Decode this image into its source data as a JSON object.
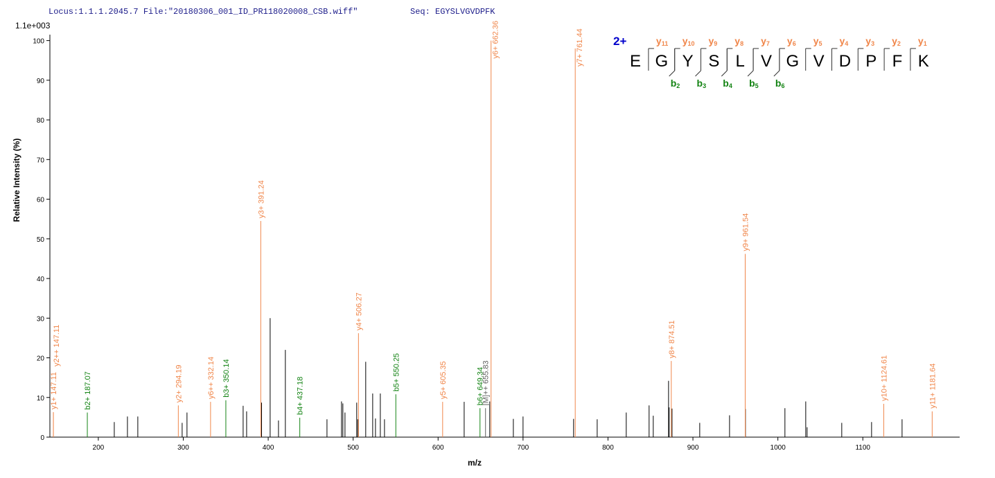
{
  "header": {
    "locus_file": "Locus:1.1.1.2045.7 File:\"20180306_001_ID_PR118020008_CSB.wiff\"",
    "seq": "Seq: EGYSLVGVDPFK"
  },
  "chart_data": {
    "type": "spectrum",
    "scale_label": "1.1e+003",
    "y_label": "Relative   Intensity (%)",
    "x_label": "m/z",
    "xlim": [
      143,
      1214
    ],
    "ylim": [
      0,
      101.5
    ],
    "xticks": [
      200,
      300,
      400,
      500,
      600,
      700,
      800,
      900,
      1000,
      1100
    ],
    "yticks": [
      0,
      10,
      20,
      30,
      40,
      50,
      60,
      70,
      80,
      90,
      100
    ],
    "peak_color": "#000000",
    "ion_colors": {
      "y": "#f0864a",
      "b": "#138313",
      "M": "#606060"
    },
    "peaks": {
      "x": [
        218.8,
        234.3,
        246.5,
        298.7,
        304.4,
        370.5,
        374.6,
        392.2,
        402.3,
        412.1,
        420.2,
        469.2,
        486.3,
        487.9,
        490.4,
        504.2,
        505.4,
        514.8,
        523.0,
        526.3,
        532.0,
        536.9,
        630.7,
        660.8,
        688.6,
        700,
        759.5,
        787.3,
        821.5,
        848.4,
        853.3,
        871.3,
        872,
        875.4,
        908,
        943.1,
        961.8,
        1008.3,
        1032.8,
        1034.4,
        1075.2,
        1110.3,
        1146.2
      ],
      "values": [
        3.8,
        5.2,
        5.2,
        3.6,
        6.2,
        7.9,
        6.5,
        8.7,
        30,
        4.2,
        22,
        4.5,
        9,
        8.5,
        6.2,
        8.7,
        4.5,
        19,
        11,
        4.7,
        11,
        4.5,
        8.9,
        9,
        4.6,
        5.2,
        4.6,
        4.5,
        6.2,
        8,
        5.4,
        14.2,
        7.5,
        7.2,
        3.6,
        5.5,
        7.1,
        7.3,
        9,
        2.5,
        3.6,
        3.8,
        4.5
      ]
    },
    "annotated": {
      "x": [
        147.11,
        147.11,
        187.07,
        294.19,
        332.14,
        350.14,
        391.24,
        437.18,
        506.27,
        550.25,
        605.35,
        649.34,
        655.83,
        662.36,
        761.44,
        874.51,
        961.54,
        1124.61,
        1181.64
      ],
      "values": [
        6.3,
        6.3,
        6.2,
        8,
        8.9,
        9.3,
        54.5,
        4.9,
        26.2,
        10.8,
        8.9,
        7.3,
        7.3,
        100,
        98,
        19.2,
        46.2,
        8.4,
        6.5
      ],
      "labels": [
        "y1+ 147.11",
        "y2++ 147.11",
        "b2+ 187.07",
        "y2+ 294.19",
        "y6++ 332.14",
        "b3+ 350.14",
        "y3+ 391.24",
        "b4+ 437.18",
        "y4+ 506.27",
        "b5+ 550.25",
        "y5+ 605.35",
        "b6+ 649.34",
        "[M]++ 655.83",
        "y6+ 662.36",
        "y7+ 761.44",
        "y8+ 874.51",
        "y9+ 961.54",
        "y10+ 1124.61",
        "y11+ 1181.64"
      ],
      "ions": [
        "y",
        "y",
        "b",
        "y",
        "y",
        "b",
        "y",
        "b",
        "y",
        "b",
        "y",
        "b",
        "M",
        "y",
        "y",
        "y",
        "y",
        "y",
        "y"
      ]
    }
  },
  "sequence": {
    "charge": "2+",
    "residues": [
      "E",
      "G",
      "Y",
      "S",
      "L",
      "V",
      "G",
      "V",
      "D",
      "P",
      "F",
      "K"
    ],
    "y_ions": [
      {
        "letter": "y",
        "sub": "11"
      },
      {
        "letter": "y",
        "sub": "10"
      },
      {
        "letter": "y",
        "sub": "9"
      },
      {
        "letter": "y",
        "sub": "8"
      },
      {
        "letter": "y",
        "sub": "7"
      },
      {
        "letter": "y",
        "sub": "6"
      },
      {
        "letter": "y",
        "sub": "5"
      },
      {
        "letter": "y",
        "sub": "4"
      },
      {
        "letter": "y",
        "sub": "3"
      },
      {
        "letter": "y",
        "sub": "2"
      },
      {
        "letter": "y",
        "sub": "1"
      }
    ],
    "b_ions": [
      {
        "letter": "b",
        "sub": "2"
      },
      {
        "letter": "b",
        "sub": "3"
      },
      {
        "letter": "b",
        "sub": "4"
      },
      {
        "letter": "b",
        "sub": "5"
      },
      {
        "letter": "b",
        "sub": "6"
      }
    ]
  }
}
